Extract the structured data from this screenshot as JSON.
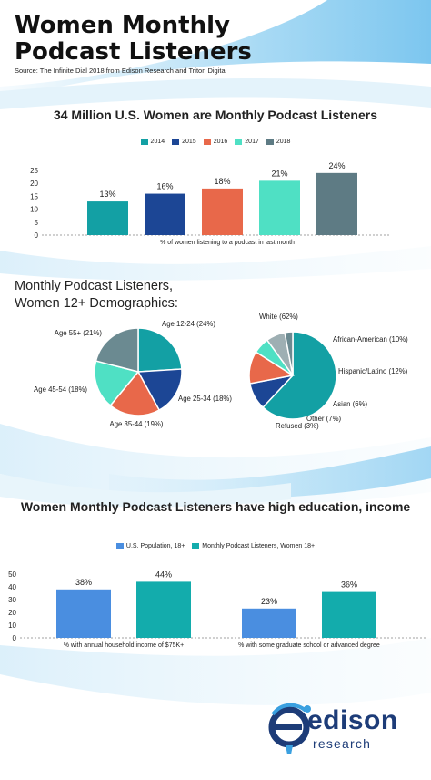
{
  "header": {
    "title": "Women Monthly Podcast Listeners",
    "source": "Source: The Infinite Dial 2018 from Edison Research and Triton Digital"
  },
  "colors": {
    "y2014": "#13a0a4",
    "y2015": "#1c4695",
    "y2016": "#e8684a",
    "y2017": "#4fe0c4",
    "y2018": "#5e7b84",
    "us_population": "#4a8ee0",
    "listeners": "#13acac",
    "pie_gray": "#6b8a91",
    "pie_navy": "#1c4695",
    "pie_coral": "#e8684a",
    "pie_mint": "#4fe0c4",
    "pie_teal": "#13a0a4",
    "pie_light_gray": "#9eafb3",
    "wave_blue": "#bfe3f7"
  },
  "chart_data": [
    {
      "type": "bar",
      "title": "34 Million U.S. Women are Monthly Podcast Listeners",
      "categories": [
        "2014",
        "2015",
        "2016",
        "2017",
        "2018"
      ],
      "values": [
        13,
        16,
        18,
        21,
        24
      ],
      "data_labels": [
        "13%",
        "16%",
        "18%",
        "21%",
        "24%"
      ],
      "legend": [
        "2014",
        "2015",
        "2016",
        "2017",
        "2018"
      ],
      "legend_placement": "top",
      "xlabel": "% of women listening to a podcast in last month",
      "ylim": [
        0,
        25
      ],
      "yticks": [
        0,
        5,
        10,
        15,
        20,
        25
      ],
      "grid": false
    },
    {
      "type": "pie",
      "section_title_line1": "Monthly Podcast Listeners,",
      "section_title_line2": "Women 12+ Demographics:",
      "labels": [
        "Age 12-24 (24%)",
        "Age 25-34 (18%)",
        "Age 35-44 (19%)",
        "Age 45-54 (18%)",
        "Age 55+ (21%)"
      ],
      "values": [
        24,
        18,
        19,
        18,
        21
      ]
    },
    {
      "type": "pie",
      "labels": [
        "White (62%)",
        "African-American (10%)",
        "Hispanic/Latino (12%)",
        "Asian (6%)",
        "Other (7%)",
        "Refused (3%)"
      ],
      "values": [
        62,
        10,
        12,
        6,
        7,
        3
      ]
    },
    {
      "type": "bar",
      "title": "Women Monthly Podcast Listeners have high education, income",
      "categories": [
        "% with annual household income of $75K+",
        "% with some graduate school or advanced degree"
      ],
      "series": [
        {
          "name": "U.S. Population, 18+",
          "values": [
            38,
            23
          ],
          "data_labels": [
            "38%",
            "23%"
          ]
        },
        {
          "name": "Monthly Podcast Listeners, Women 18+",
          "values": [
            44,
            36
          ],
          "data_labels": [
            "44%",
            "36%"
          ]
        }
      ],
      "legend_placement": "top",
      "ylim": [
        0,
        50
      ],
      "yticks": [
        0,
        10,
        20,
        30,
        40,
        50
      ],
      "grid": false
    }
  ],
  "logo": {
    "name": "edison",
    "sub": "research"
  }
}
